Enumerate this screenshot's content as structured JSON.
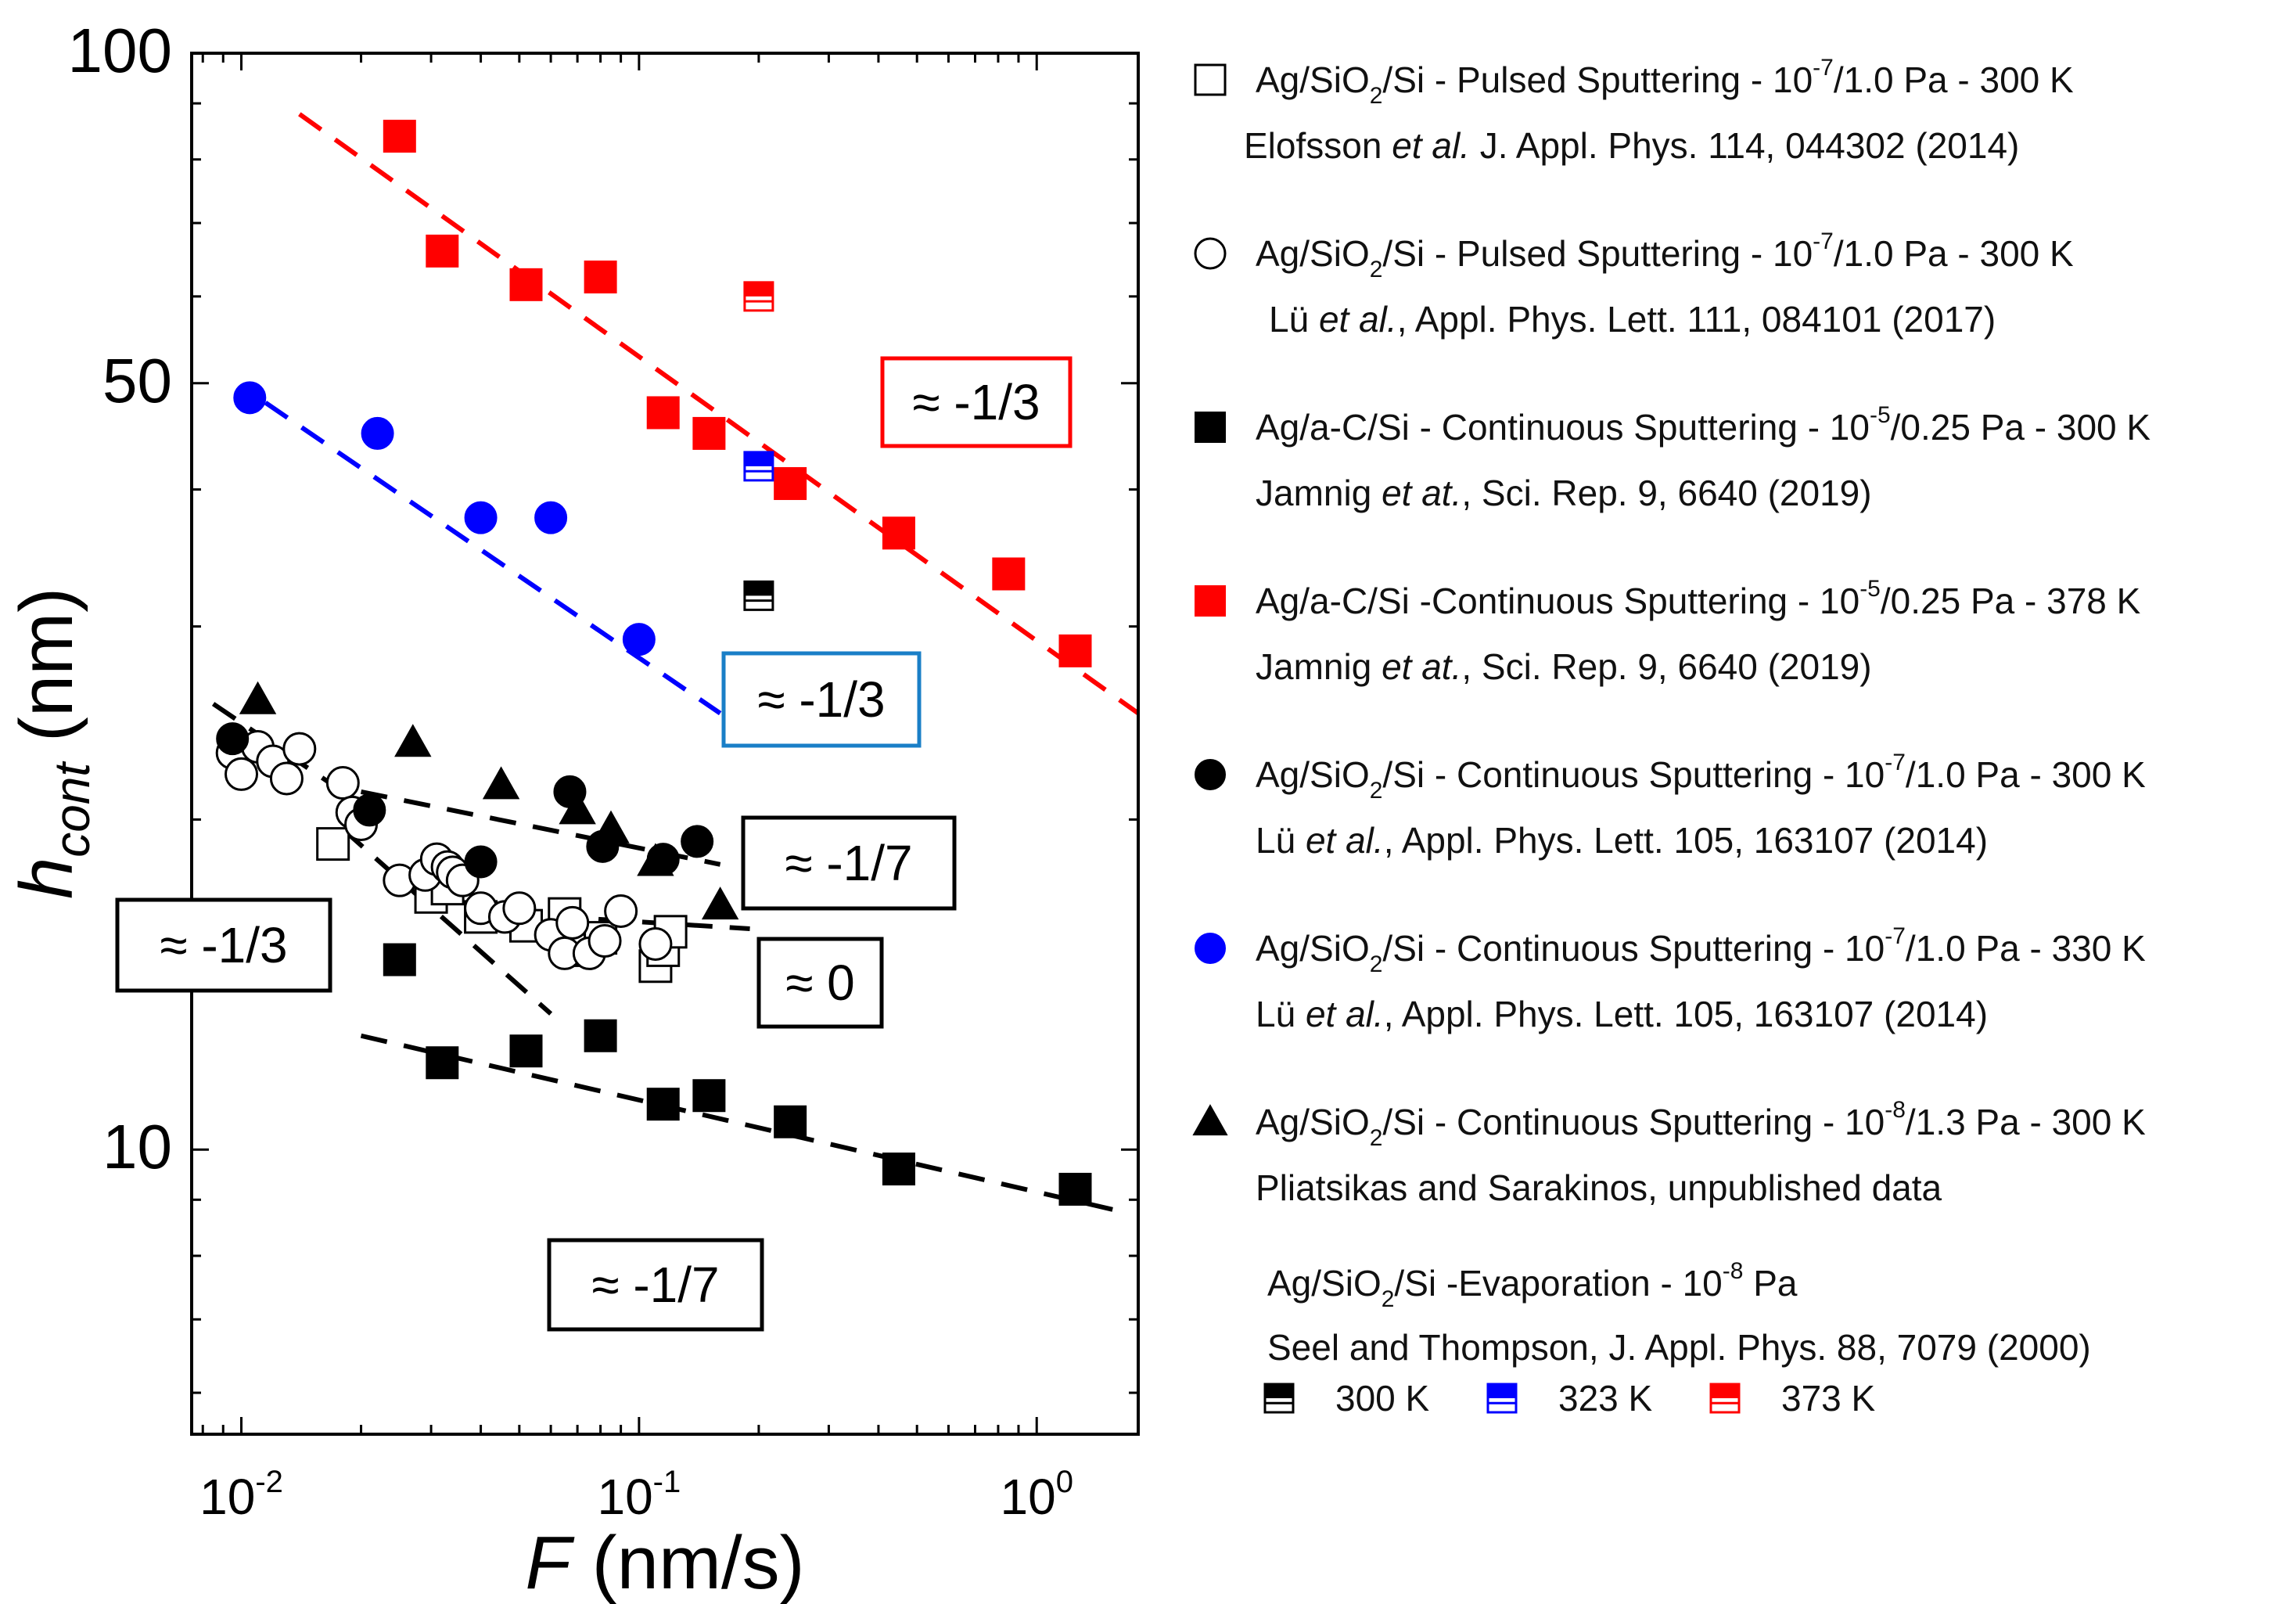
{
  "chart_data": {
    "type": "scatter",
    "xscale": "log",
    "yscale": "log",
    "xlim": [
      0.0075,
      1.8
    ],
    "ylim": [
      5.5,
      100
    ],
    "xlabel": {
      "symbol": "F",
      "unit": "(nm/s)"
    },
    "ylabel": {
      "symbol": "h",
      "sub": "cont",
      "unit": "(nm)"
    },
    "x_ticks": [
      {
        "value": 0.01,
        "base": "10",
        "exp": "-2"
      },
      {
        "value": 0.1,
        "base": "10",
        "exp": "-1"
      },
      {
        "value": 1,
        "base": "10",
        "exp": "0"
      }
    ],
    "y_ticks": [
      {
        "value": 10,
        "label": "10"
      },
      {
        "value": 50,
        "label": "50"
      },
      {
        "value": 100,
        "label": "100"
      }
    ],
    "series": [
      {
        "id": "sq-open",
        "marker": "square-open",
        "color": "#000000",
        "legend": {
          "material": "Ag/SiO",
          "sub": "2",
          "material_tail": "/Si  - Pulsed Sputtering - 10",
          "exp": "-7",
          "tail": "/1.0 Pa - 300 K",
          "cite_pre": "Elofsson ",
          "cite_it": "et al.",
          "cite_post": " J. Appl. Phys. 114, 044302 (2014)"
        },
        "points": [
          [
            0.017,
            19.0
          ],
          [
            0.03,
            17.0
          ],
          [
            0.033,
            17.3
          ],
          [
            0.04,
            16.3
          ],
          [
            0.052,
            16.0
          ],
          [
            0.065,
            16.4
          ],
          [
            0.068,
            15.2
          ],
          [
            0.08,
            15.6
          ],
          [
            0.11,
            14.7
          ],
          [
            0.115,
            15.2
          ],
          [
            0.12,
            15.8
          ]
        ]
      },
      {
        "id": "circ-open",
        "marker": "circle-open",
        "color": "#000000",
        "legend": {
          "material": "Ag/SiO",
          "sub": "2",
          "material_tail": "/Si - Pulsed Sputtering - 10",
          "exp": "-7",
          "tail": "/1.0 Pa - 300 K",
          "cite_pre": "Lü ",
          "cite_it": "et al.",
          "cite_post": ",  Appl. Phys. Lett. 111, 084101 (2017)"
        },
        "points": [
          [
            0.0095,
            23.0
          ],
          [
            0.01,
            22.0
          ],
          [
            0.011,
            23.3
          ],
          [
            0.012,
            22.6
          ],
          [
            0.013,
            21.8
          ],
          [
            0.014,
            23.2
          ],
          [
            0.018,
            21.6
          ],
          [
            0.019,
            20.3
          ],
          [
            0.02,
            19.8
          ],
          [
            0.025,
            17.6
          ],
          [
            0.029,
            17.8
          ],
          [
            0.031,
            18.4
          ],
          [
            0.033,
            18.1
          ],
          [
            0.034,
            17.9
          ],
          [
            0.036,
            17.6
          ],
          [
            0.04,
            16.6
          ],
          [
            0.046,
            16.3
          ],
          [
            0.05,
            16.6
          ],
          [
            0.06,
            15.7
          ],
          [
            0.065,
            15.1
          ],
          [
            0.068,
            16.1
          ],
          [
            0.075,
            15.1
          ],
          [
            0.082,
            15.5
          ],
          [
            0.09,
            16.5
          ],
          [
            0.11,
            15.4
          ]
        ]
      },
      {
        "id": "sq-black",
        "marker": "square-filled",
        "color": "#000000",
        "legend": {
          "material": "Ag/a-C/Si - Continuous Sputtering - 10",
          "sub": "",
          "material_tail": "",
          "exp": "-5",
          "tail": "/0.25 Pa - 300 K",
          "cite_pre": "Jamnig ",
          "cite_it": "et at.",
          "cite_post": ", Sci. Rep. 9, 6640 (2019)"
        },
        "points": [
          [
            0.025,
            14.9
          ],
          [
            0.032,
            12.0
          ],
          [
            0.052,
            12.3
          ],
          [
            0.08,
            12.7
          ],
          [
            0.115,
            11.0
          ],
          [
            0.15,
            11.2
          ],
          [
            0.24,
            10.6
          ],
          [
            0.45,
            9.6
          ],
          [
            1.25,
            9.2
          ]
        ]
      },
      {
        "id": "sq-red",
        "marker": "square-filled",
        "color": "#ff0000",
        "legend": {
          "material": "Ag/a-C/Si -Continuous Sputtering - 10",
          "sub": "",
          "material_tail": "",
          "exp": "-5",
          "tail": "/0.25 Pa - 378 K",
          "cite_pre": "Jamnig ",
          "cite_it": "et at.",
          "cite_post": ", Sci. Rep. 9, 6640 (2019)"
        },
        "points": [
          [
            0.025,
            84.0
          ],
          [
            0.032,
            66.0
          ],
          [
            0.052,
            61.5
          ],
          [
            0.08,
            62.5
          ],
          [
            0.115,
            47.0
          ],
          [
            0.15,
            45.0
          ],
          [
            0.24,
            40.5
          ],
          [
            0.45,
            36.5
          ],
          [
            0.85,
            33.5
          ],
          [
            1.25,
            28.5
          ]
        ]
      },
      {
        "id": "circ-black",
        "marker": "circle-filled",
        "color": "#000000",
        "legend": {
          "material": "Ag/SiO",
          "sub": "2",
          "material_tail": "/Si - Continuous Sputtering - 10",
          "exp": "-7",
          "tail": "/1.0 Pa - 300 K",
          "cite_pre": "Lü ",
          "cite_it": "et al.",
          "cite_post": ", Appl. Phys. Lett. 105, 163107 (2014)"
        },
        "points": [
          [
            0.0095,
            23.7
          ],
          [
            0.021,
            20.4
          ],
          [
            0.04,
            18.3
          ],
          [
            0.067,
            21.2
          ],
          [
            0.081,
            18.9
          ],
          [
            0.115,
            18.4
          ],
          [
            0.14,
            19.1
          ]
        ]
      },
      {
        "id": "circ-blue",
        "marker": "circle-filled",
        "color": "#0000ff",
        "legend": {
          "material": "Ag/SiO",
          "sub": "2",
          "material_tail": "/Si - Continuous Sputtering - 10",
          "exp": "-7",
          "tail": "/1.0 Pa - 330 K",
          "cite_pre": "Lü ",
          "cite_it": "et al.",
          "cite_post": ", Appl. Phys. Lett. 105, 163107 (2014)"
        },
        "points": [
          [
            0.0105,
            48.5
          ],
          [
            0.022,
            45.0
          ],
          [
            0.04,
            37.7
          ],
          [
            0.06,
            37.7
          ],
          [
            0.1,
            29.2
          ]
        ]
      },
      {
        "id": "tri-black",
        "marker": "triangle-filled",
        "color": "#000000",
        "legend": {
          "material": "Ag/SiO",
          "sub": "2",
          "material_tail": "/Si - Continuous Sputtering - 10",
          "exp": "-8",
          "tail": "/1.3 Pa - 300 K",
          "cite_pre": "Pliatsikas and Sarakinos, unpublished data",
          "cite_it": "",
          "cite_post": ""
        },
        "points": [
          [
            0.011,
            25.7
          ],
          [
            0.027,
            23.5
          ],
          [
            0.045,
            21.5
          ],
          [
            0.07,
            20.4
          ],
          [
            0.085,
            19.6
          ],
          [
            0.11,
            18.3
          ],
          [
            0.16,
            16.7
          ]
        ]
      },
      {
        "id": "half-black",
        "marker": "square-half",
        "color": "#000000",
        "legend_key": "300 K",
        "points": [
          [
            0.2,
            32.0
          ]
        ]
      },
      {
        "id": "half-blue",
        "marker": "square-half",
        "color": "#0000ff",
        "legend_key": "323 K",
        "points": [
          [
            0.2,
            42.0
          ]
        ]
      },
      {
        "id": "half-red",
        "marker": "square-half",
        "color": "#ff0000",
        "legend_key": "373 K",
        "points": [
          [
            0.2,
            60.0
          ]
        ]
      }
    ],
    "fit_lines": [
      {
        "color": "#ff0000",
        "from": [
          0.014,
          88.0
        ],
        "to": [
          1.8,
          25.0
        ]
      },
      {
        "color": "#0000ff",
        "from": [
          0.0115,
          48.0
        ],
        "to": [
          0.16,
          25.0
        ]
      },
      {
        "color": "#000000",
        "from": [
          0.0085,
          25.5
        ],
        "to": [
          0.017,
          21.5
        ]
      },
      {
        "color": "#000000",
        "from": [
          0.02,
          21.2
        ],
        "to": [
          0.16,
          18.2
        ]
      },
      {
        "color": "#000000",
        "from": [
          0.037,
          16.5
        ],
        "to": [
          0.19,
          15.9
        ]
      },
      {
        "color": "#000000",
        "from": [
          0.02,
          12.7
        ],
        "to": [
          1.7,
          8.75
        ]
      },
      {
        "color": "#000000",
        "from": [
          0.018,
          19.6
        ],
        "to": [
          0.06,
          13.3
        ]
      }
    ],
    "slope_labels": [
      {
        "text": "≈ -1/3",
        "color": "#ff0000",
        "border": "#ff0000"
      },
      {
        "text": "≈ -1/3",
        "color": "#1a7fc7",
        "border": "#1a7fc7"
      },
      {
        "text": "≈ -1/7",
        "color": "#000000",
        "border": "#000000"
      },
      {
        "text": "≈ -1/3",
        "color": "#000000",
        "border": "#000000"
      },
      {
        "text": "≈ 0",
        "color": "#000000",
        "border": "#000000"
      },
      {
        "text": "≈ -1/7",
        "color": "#000000",
        "border": "#000000"
      }
    ],
    "evaporation_legend": {
      "line1": {
        "material": "Ag/SiO",
        "sub": "2",
        "material_tail": "/Si -Evaporation - 10",
        "exp": "-8",
        "tail": " Pa"
      },
      "line2": "Seel and Thompson, J. Appl. Phys. 88, 7079 (2000)"
    }
  }
}
